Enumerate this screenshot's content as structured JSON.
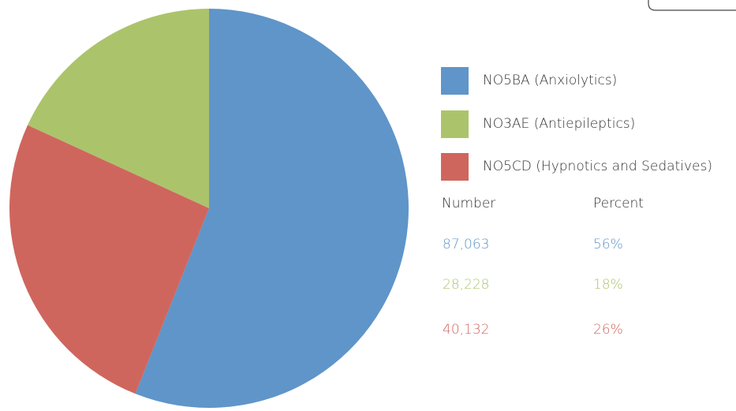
{
  "chart_data": {
    "type": "pie",
    "categories": [
      "NO5BA (Anxiolytics)",
      "NO3AE (Antiepileptics)",
      "NO5CD (Hypnotics and Sedatives)"
    ],
    "values": [
      87063,
      28228,
      40132
    ],
    "value_labels": [
      "87,063",
      "28,228",
      "40,132"
    ],
    "percents": [
      56,
      18,
      26
    ],
    "percent_labels": [
      "56%",
      "18%",
      "26%"
    ],
    "colors": [
      "#5f95c9",
      "#abc46b",
      "#cf665d"
    ],
    "number_header": "Number",
    "percent_header": "Percent"
  }
}
